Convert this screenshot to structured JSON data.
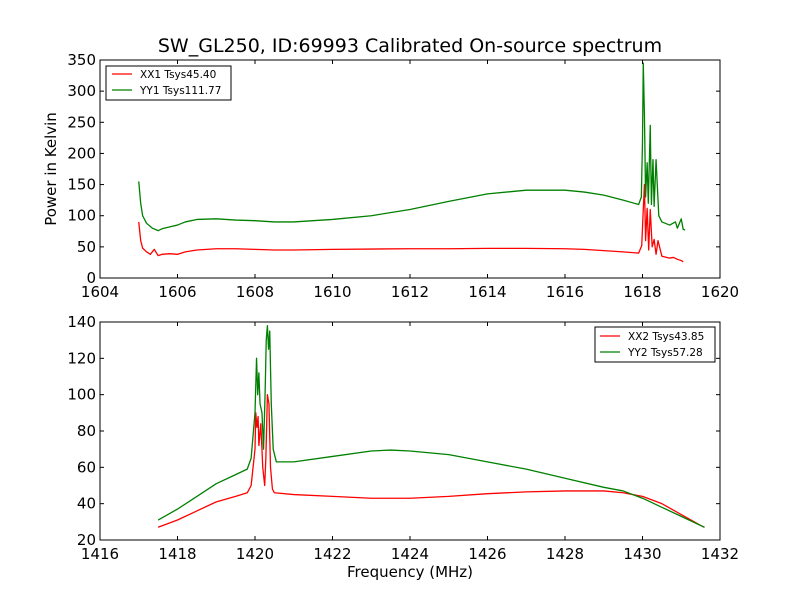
{
  "title": "SW_GL250, ID:69993 Calibrated On-source spectrum",
  "colors": {
    "xx": "#ff0000",
    "yy": "#008000"
  },
  "chart_data": [
    {
      "type": "line",
      "title": "SW_GL250, ID:69993 Calibrated On-source spectrum",
      "xlabel": "",
      "ylabel": "Power in Kelvin",
      "xlim": [
        1604,
        1620
      ],
      "ylim": [
        0,
        350
      ],
      "xticks": [
        1604,
        1606,
        1608,
        1610,
        1612,
        1614,
        1616,
        1618,
        1620
      ],
      "yticks": [
        0,
        50,
        100,
        150,
        200,
        250,
        300,
        350
      ],
      "grid": false,
      "legend_position": "top-left",
      "series": [
        {
          "name": "XX1 Tsys45.40",
          "color": "#ff0000",
          "points": [
            [
              1605.0,
              90
            ],
            [
              1605.05,
              60
            ],
            [
              1605.1,
              48
            ],
            [
              1605.2,
              42
            ],
            [
              1605.3,
              38
            ],
            [
              1605.4,
              46
            ],
            [
              1605.5,
              36
            ],
            [
              1605.6,
              38
            ],
            [
              1605.8,
              39
            ],
            [
              1606.0,
              38
            ],
            [
              1606.2,
              42
            ],
            [
              1606.5,
              45
            ],
            [
              1607.0,
              47
            ],
            [
              1607.5,
              47
            ],
            [
              1608.0,
              46
            ],
            [
              1608.5,
              45
            ],
            [
              1609.0,
              45
            ],
            [
              1610.0,
              46
            ],
            [
              1611.0,
              46.5
            ],
            [
              1612.0,
              47
            ],
            [
              1613.0,
              47
            ],
            [
              1614.0,
              47.5
            ],
            [
              1615.0,
              47.5
            ],
            [
              1616.0,
              47
            ],
            [
              1616.5,
              46
            ],
            [
              1617.0,
              44
            ],
            [
              1617.5,
              42
            ],
            [
              1617.9,
              40
            ],
            [
              1617.98,
              52
            ],
            [
              1618.02,
              110
            ],
            [
              1618.05,
              150
            ],
            [
              1618.08,
              60
            ],
            [
              1618.12,
              112
            ],
            [
              1618.16,
              45
            ],
            [
              1618.2,
              110
            ],
            [
              1618.25,
              50
            ],
            [
              1618.3,
              62
            ],
            [
              1618.35,
              38
            ],
            [
              1618.4,
              60
            ],
            [
              1618.5,
              35
            ],
            [
              1618.7,
              32
            ],
            [
              1618.8,
              33
            ],
            [
              1618.9,
              30
            ],
            [
              1619.0,
              28
            ],
            [
              1619.05,
              26
            ]
          ]
        },
        {
          "name": "YY1 Tsys111.77",
          "color": "#008000",
          "points": [
            [
              1605.0,
              155
            ],
            [
              1605.05,
              120
            ],
            [
              1605.1,
              100
            ],
            [
              1605.2,
              88
            ],
            [
              1605.35,
              80
            ],
            [
              1605.5,
              76
            ],
            [
              1605.6,
              79
            ],
            [
              1605.8,
              82
            ],
            [
              1606.0,
              85
            ],
            [
              1606.2,
              90
            ],
            [
              1606.5,
              94
            ],
            [
              1607.0,
              95
            ],
            [
              1607.5,
              93
            ],
            [
              1608.0,
              92
            ],
            [
              1608.5,
              90
            ],
            [
              1609.0,
              90
            ],
            [
              1610.0,
              94
            ],
            [
              1611.0,
              100
            ],
            [
              1612.0,
              110
            ],
            [
              1613.0,
              123
            ],
            [
              1614.0,
              135
            ],
            [
              1615.0,
              141
            ],
            [
              1616.0,
              141
            ],
            [
              1616.5,
              138
            ],
            [
              1617.0,
              133
            ],
            [
              1617.5,
              125
            ],
            [
              1617.9,
              118
            ],
            [
              1617.97,
              130
            ],
            [
              1618.0,
              220
            ],
            [
              1618.02,
              345
            ],
            [
              1618.05,
              260
            ],
            [
              1618.08,
              130
            ],
            [
              1618.12,
              185
            ],
            [
              1618.15,
              120
            ],
            [
              1618.2,
              245
            ],
            [
              1618.23,
              118
            ],
            [
              1618.27,
              190
            ],
            [
              1618.3,
              115
            ],
            [
              1618.35,
              190
            ],
            [
              1618.42,
              100
            ],
            [
              1618.5,
              90
            ],
            [
              1618.7,
              85
            ],
            [
              1618.85,
              90
            ],
            [
              1618.9,
              80
            ],
            [
              1619.0,
              95
            ],
            [
              1619.05,
              78
            ],
            [
              1619.1,
              77
            ]
          ]
        }
      ]
    },
    {
      "type": "line",
      "title": "",
      "xlabel": "Frequency (MHz)",
      "ylabel": "",
      "xlim": [
        1416,
        1432
      ],
      "ylim": [
        20,
        140
      ],
      "xticks": [
        1416,
        1418,
        1420,
        1422,
        1424,
        1426,
        1428,
        1430,
        1432
      ],
      "yticks": [
        20,
        40,
        60,
        80,
        100,
        120,
        140
      ],
      "grid": false,
      "legend_position": "top-right",
      "series": [
        {
          "name": "XX2 Tsys43.85",
          "color": "#ff0000",
          "points": [
            [
              1417.5,
              27
            ],
            [
              1418.0,
              31
            ],
            [
              1418.5,
              36
            ],
            [
              1419.0,
              41
            ],
            [
              1419.5,
              44
            ],
            [
              1419.8,
              46
            ],
            [
              1419.9,
              50
            ],
            [
              1420.0,
              70
            ],
            [
              1420.02,
              90
            ],
            [
              1420.05,
              82
            ],
            [
              1420.08,
              88
            ],
            [
              1420.1,
              72
            ],
            [
              1420.15,
              84
            ],
            [
              1420.2,
              60
            ],
            [
              1420.25,
              50
            ],
            [
              1420.28,
              65
            ],
            [
              1420.32,
              100
            ],
            [
              1420.36,
              95
            ],
            [
              1420.4,
              60
            ],
            [
              1420.45,
              48
            ],
            [
              1420.5,
              46
            ],
            [
              1421.0,
              45
            ],
            [
              1422.0,
              44
            ],
            [
              1423.0,
              43
            ],
            [
              1424.0,
              43
            ],
            [
              1425.0,
              44
            ],
            [
              1426.0,
              45.5
            ],
            [
              1427.0,
              46.5
            ],
            [
              1428.0,
              47
            ],
            [
              1429.0,
              47
            ],
            [
              1429.5,
              46
            ],
            [
              1430.0,
              44
            ],
            [
              1430.5,
              40
            ],
            [
              1431.0,
              34
            ],
            [
              1431.5,
              28
            ],
            [
              1431.6,
              27
            ]
          ]
        },
        {
          "name": "YY2 Tsys57.28",
          "color": "#008000",
          "points": [
            [
              1417.5,
              31
            ],
            [
              1418.0,
              37
            ],
            [
              1418.5,
              44
            ],
            [
              1419.0,
              51
            ],
            [
              1419.5,
              56
            ],
            [
              1419.8,
              59
            ],
            [
              1419.9,
              65
            ],
            [
              1420.0,
              90
            ],
            [
              1420.04,
              120
            ],
            [
              1420.07,
              100
            ],
            [
              1420.1,
              112
            ],
            [
              1420.13,
              95
            ],
            [
              1420.18,
              90
            ],
            [
              1420.22,
              70
            ],
            [
              1420.26,
              100
            ],
            [
              1420.29,
              130
            ],
            [
              1420.32,
              138
            ],
            [
              1420.35,
              125
            ],
            [
              1420.38,
              135
            ],
            [
              1420.42,
              95
            ],
            [
              1420.47,
              70
            ],
            [
              1420.55,
              63
            ],
            [
              1421.0,
              63
            ],
            [
              1422.0,
              66
            ],
            [
              1423.0,
              69
            ],
            [
              1423.5,
              69.5
            ],
            [
              1424.0,
              69
            ],
            [
              1425.0,
              67
            ],
            [
              1426.0,
              63
            ],
            [
              1427.0,
              59
            ],
            [
              1428.0,
              54
            ],
            [
              1429.0,
              49
            ],
            [
              1429.5,
              47
            ],
            [
              1430.0,
              43
            ],
            [
              1430.5,
              38
            ],
            [
              1431.0,
              33
            ],
            [
              1431.6,
              27
            ]
          ]
        }
      ]
    }
  ]
}
